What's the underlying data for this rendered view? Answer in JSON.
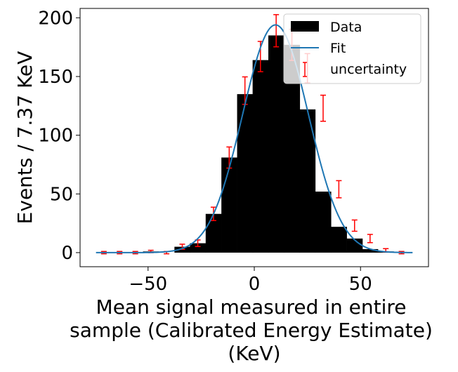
{
  "chart_data": {
    "type": "bar",
    "title": "",
    "xlabel_lines": [
      "Mean signal measured in entire",
      "sample (Calibrated Energy Estimate)",
      "(KeV)"
    ],
    "ylabel": "Events / 7.37 KeV",
    "xlim": [
      -82,
      82
    ],
    "ylim": [
      -12,
      208
    ],
    "xticks": [
      -50,
      0,
      50
    ],
    "xtick_labels": [
      "−50",
      "0",
      "50"
    ],
    "yticks": [
      0,
      50,
      100,
      150,
      200
    ],
    "ytick_labels": [
      "0",
      "50",
      "100",
      "150",
      "200"
    ],
    "bin_width": 7.37,
    "histogram": {
      "name": "Data",
      "color": "#000000",
      "bin_centers": [
        -70.8,
        -63.4,
        -56.0,
        -48.7,
        -41.3,
        -33.9,
        -26.6,
        -19.2,
        -11.8,
        -4.4,
        2.9,
        10.3,
        17.7,
        25.0,
        32.4,
        39.8,
        47.2,
        54.5,
        61.9,
        69.3
      ],
      "counts": [
        0,
        0,
        0,
        1,
        0,
        5,
        8,
        33,
        81,
        135,
        164,
        185,
        177,
        122,
        52,
        22,
        12,
        3,
        1,
        0
      ]
    },
    "fit": {
      "name": "Fit",
      "color": "#1f77b4",
      "type": "gaussian",
      "amplitude": 194,
      "mean": 10,
      "sigma": 15.5,
      "x_range": [
        -74.5,
        74.5
      ]
    },
    "uncertainty": {
      "name": "uncertainty",
      "color": "#ff0000",
      "x": [
        -70.8,
        -63.4,
        -56.0,
        -48.7,
        -41.3,
        -33.9,
        -26.6,
        -19.2,
        -11.8,
        -4.4,
        2.9,
        10.3,
        17.7,
        25.0,
        32.4,
        39.8,
        47.2,
        54.5,
        61.9,
        69.3
      ],
      "y": [
        0,
        0,
        0,
        1,
        0,
        5,
        8,
        33,
        81,
        138,
        167,
        189,
        177,
        157,
        123,
        54,
        23,
        12,
        2,
        0
      ],
      "yerr": [
        1,
        1,
        1,
        1,
        1,
        2.2,
        2.8,
        5.7,
        9.0,
        11.7,
        12.9,
        13.7,
        13.3,
        12.5,
        11.1,
        7.3,
        4.8,
        3.5,
        1.4,
        1
      ]
    },
    "legend": {
      "position": "top-right",
      "entries": [
        "Data",
        "Fit",
        "uncertainty"
      ]
    },
    "grid": false
  }
}
